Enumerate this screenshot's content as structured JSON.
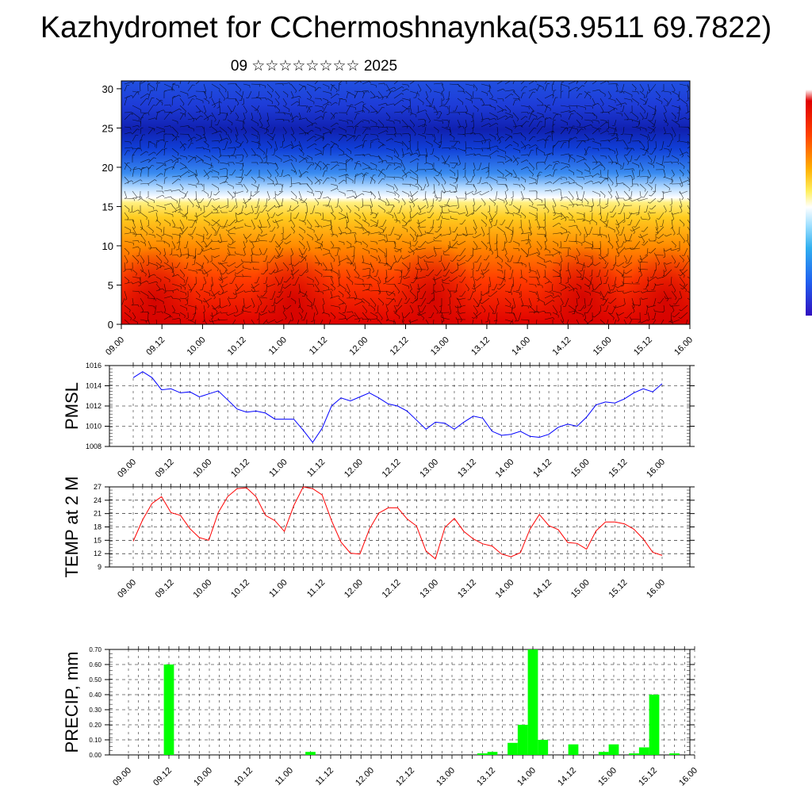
{
  "title": "Kazhydromet for CChermoshnaynka(53.9511 69.7822)",
  "subtitle": "09 ☆☆☆☆☆☆☆☆ 2025",
  "colors": {
    "pressure": "#0000ff",
    "temperature": "#ff0000",
    "precip": "#00ff00"
  },
  "chart_data": [
    {
      "id": "cross-section",
      "type": "heatmap",
      "description_free": true,
      "x_ticks": [
        "09.00",
        "09.12",
        "10.00",
        "10.12",
        "11.00",
        "11.12",
        "12.00",
        "12.12",
        "13.00",
        "13.12",
        "14.00",
        "14.12",
        "15.00",
        "15.12",
        "16.00"
      ],
      "y_ticks": [
        "0",
        "5",
        "10",
        "15",
        "20",
        "25",
        "30"
      ],
      "ylim": [
        0,
        31
      ],
      "colorbar": true
    },
    {
      "id": "pmsl",
      "type": "line",
      "ylabel": "PMSL",
      "ylim": [
        1008,
        1016
      ],
      "y_ticks": [
        "1016",
        "1014",
        "1012",
        "1010",
        "1008"
      ],
      "x_ticks": [
        "09.00",
        "09.12",
        "10.00",
        "10.12",
        "11.00",
        "11.12",
        "12.00",
        "12.12",
        "13.00",
        "13.12",
        "14.00",
        "14.12",
        "15.00",
        "15.12",
        "16.00"
      ],
      "x_step_hours": 3,
      "values": [
        1014.8,
        1015.4,
        1014.8,
        1013.6,
        1013.7,
        1013.3,
        1013.4,
        1012.9,
        1013.2,
        1013.5,
        1012.6,
        1011.7,
        1011.4,
        1011.5,
        1011.3,
        1010.7,
        1010.7,
        1010.7,
        1009.6,
        1008.4,
        1009.8,
        1012.0,
        1012.8,
        1012.5,
        1012.9,
        1013.3,
        1012.8,
        1012.2,
        1012.0,
        1011.5,
        1010.6,
        1009.7,
        1010.4,
        1010.3,
        1009.7,
        1010.4,
        1011.0,
        1010.8,
        1009.5,
        1009.1,
        1009.2,
        1009.5,
        1009.0,
        1008.9,
        1009.2,
        1009.9,
        1010.2,
        1010.0,
        1010.9,
        1012.1,
        1012.4,
        1012.3,
        1012.7,
        1013.3,
        1013.7,
        1013.4,
        1014.2
      ]
    },
    {
      "id": "temp2m",
      "type": "line",
      "ylabel": "TEMP at 2 M",
      "ylim": [
        9,
        27
      ],
      "y_ticks": [
        "27",
        "24",
        "21",
        "18",
        "15",
        "12",
        "9"
      ],
      "x_ticks": [
        "09.00",
        "09.12",
        "10.00",
        "10.12",
        "11.00",
        "11.12",
        "12.00",
        "12.12",
        "13.00",
        "13.12",
        "14.00",
        "14.12",
        "15.00",
        "15.12",
        "16.00"
      ],
      "x_step_hours": 3,
      "values": [
        14.8,
        19.6,
        23.3,
        24.8,
        21.2,
        20.6,
        17.6,
        15.6,
        15.0,
        21.2,
        24.8,
        26.6,
        26.8,
        24.8,
        20.6,
        19.4,
        17.0,
        22.8,
        27.0,
        26.6,
        25.2,
        19.4,
        14.6,
        12.1,
        11.9,
        17.5,
        21.1,
        22.3,
        22.3,
        19.8,
        18.2,
        12.6,
        10.8,
        17.9,
        19.9,
        17.0,
        15.3,
        14.2,
        13.7,
        11.9,
        11.3,
        12.2,
        17.5,
        20.8,
        18.3,
        17.4,
        14.5,
        14.3,
        13.0,
        17.1,
        19.1,
        19.1,
        18.7,
        17.5,
        15.3,
        12.3,
        11.6
      ]
    },
    {
      "id": "precip",
      "type": "bar",
      "ylabel": "PRECIP, mm",
      "ylim": [
        0,
        0.7
      ],
      "y_ticks": [
        "0.70",
        "0.60",
        "0.50",
        "0.40",
        "0.30",
        "0.20",
        "0.10",
        "0.00"
      ],
      "x_ticks": [
        "09.00",
        "09.12",
        "10.00",
        "10.12",
        "11.00",
        "11.12",
        "12.00",
        "12.12",
        "13.00",
        "13.12",
        "14.00",
        "14.12",
        "15.00",
        "15.12",
        "16.00"
      ],
      "bar_start_index": 0,
      "x_step_hours": 3,
      "values": [
        0,
        0,
        0,
        0,
        0.6,
        0,
        0,
        0,
        0,
        0,
        0,
        0,
        0,
        0,
        0,
        0,
        0,
        0,
        0.02,
        0,
        0,
        0,
        0,
        0,
        0,
        0,
        0,
        0,
        0,
        0,
        0,
        0,
        0,
        0,
        0,
        0.01,
        0.02,
        0,
        0.08,
        0.2,
        0.7,
        0.1,
        0,
        0,
        0.07,
        0,
        0,
        0.02,
        0.07,
        0,
        0.01,
        0.05,
        0.4,
        0,
        0.01,
        0,
        0
      ]
    }
  ]
}
